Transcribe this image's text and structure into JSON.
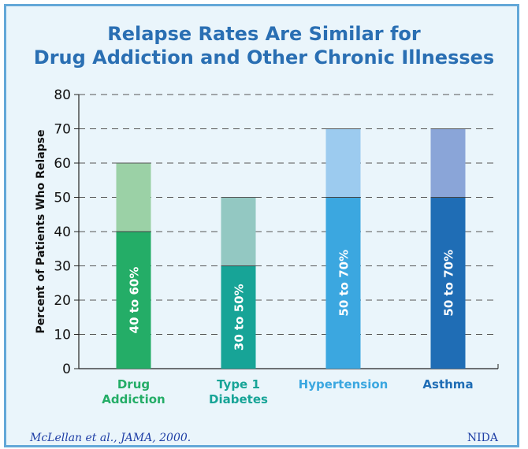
{
  "title_lines": [
    "Relapse Rates Are Similar for",
    "Drug Addiction and Other Chronic Illnesses"
  ],
  "footer": {
    "citation": "McLellan et al., JAMA, 2000.",
    "source": "NIDA"
  },
  "chart_data": {
    "type": "bar",
    "stacked": true,
    "title": "Relapse Rates Are Similar for Drug Addiction and Other Chronic Illnesses",
    "ylabel": "Percent of Patients Who Relapse",
    "xlabel": "",
    "ylim": [
      0,
      80
    ],
    "yticks": [
      0,
      10,
      20,
      30,
      40,
      50,
      60,
      70,
      80
    ],
    "grid": "dashed-horizontal",
    "categories": [
      {
        "label_lines": [
          "Drug",
          "Addiction"
        ],
        "low": 40,
        "high": 60,
        "range_label": "40 to 60%",
        "dark_color": "#24ad67",
        "light_color": "#9bd1a6",
        "label_color": "#24ad67"
      },
      {
        "label_lines": [
          "Type 1",
          "Diabetes"
        ],
        "low": 30,
        "high": 50,
        "range_label": "30 to 50%",
        "dark_color": "#17a497",
        "light_color": "#93c8c2",
        "label_color": "#17a497"
      },
      {
        "label_lines": [
          "Hypertension"
        ],
        "low": 50,
        "high": 70,
        "range_label": "50 to 70%",
        "dark_color": "#3ba7e0",
        "light_color": "#9ccbef",
        "label_color": "#3ba7e0"
      },
      {
        "label_lines": [
          "Asthma"
        ],
        "low": 50,
        "high": 70,
        "range_label": "50 to 70%",
        "dark_color": "#1f6db5",
        "light_color": "#8aa5d8",
        "label_color": "#1f6db5"
      }
    ]
  }
}
